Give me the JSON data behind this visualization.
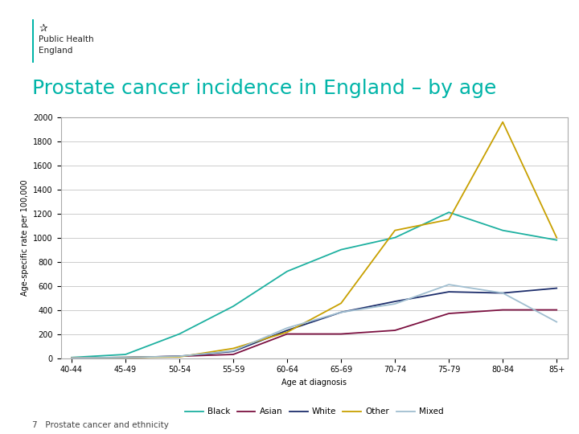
{
  "title": "Prostate cancer incidence in England – by age",
  "subtitle": "7   Prostate cancer and ethnicity",
  "xlabel": "Age at diagnosis",
  "ylabel": "Age-specific rate per 100,000",
  "ylim": [
    0,
    2000
  ],
  "yticks": [
    0,
    200,
    400,
    600,
    800,
    1000,
    1200,
    1400,
    1600,
    1800,
    2000
  ],
  "age_groups": [
    "40-44",
    "45-49",
    "50-54",
    "55-59",
    "60-64",
    "65-69",
    "70-74",
    "75-79",
    "80-84",
    "85+"
  ],
  "series": {
    "Black": [
      5,
      30,
      200,
      430,
      720,
      900,
      1000,
      1210,
      1060,
      980
    ],
    "Asian": [
      2,
      5,
      15,
      30,
      200,
      200,
      230,
      370,
      400,
      400
    ],
    "White": [
      2,
      5,
      15,
      55,
      230,
      380,
      470,
      550,
      540,
      580
    ],
    "Other": [
      2,
      5,
      10,
      80,
      215,
      455,
      1060,
      1150,
      1960,
      1000
    ],
    "Mixed": [
      2,
      5,
      15,
      60,
      250,
      380,
      450,
      610,
      540,
      300
    ]
  },
  "colors": {
    "Black": "#1DB0A0",
    "Asian": "#7B1040",
    "White": "#1C2D6B",
    "Other": "#C8A000",
    "Mixed": "#A0BED0"
  },
  "legend_order": [
    "Black",
    "Asian",
    "White",
    "Other",
    "Mixed"
  ],
  "title_color": "#00B4A8",
  "title_fontsize": 18,
  "axis_label_fontsize": 7,
  "tick_fontsize": 7,
  "background_color": "#FFFFFF"
}
